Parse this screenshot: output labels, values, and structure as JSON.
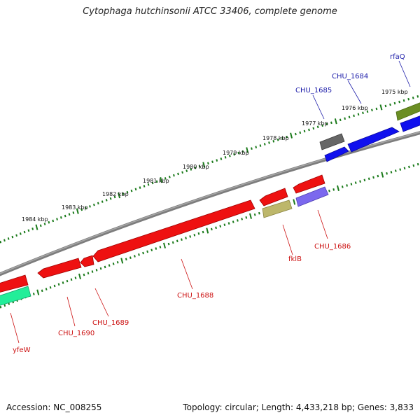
{
  "title": "Cytophaga hutchinsonii ATCC 33406, complete genome",
  "footer": {
    "accession": "Accession: NC_008255",
    "summary": "Topology: circular; Length: 4,433,218 bp; Genes: 3,833"
  },
  "colors": {
    "backbone": "#8a8a8a",
    "tick": "#1a7a1a",
    "label_forward": "#1a1aa8",
    "label_reverse": "#cc1111"
  },
  "kbp_ticks": [
    "1984 kbp",
    "1983 kbp",
    "1982 kbp",
    "1981 kbp",
    "1980 kbp",
    "1979 kbp",
    "1978 kbp",
    "1977 kbp",
    "1976 kbp",
    "1975 kbp"
  ],
  "genes": [
    {
      "name": "rfaQ",
      "strand": "forward",
      "color": "#6b8e23"
    },
    {
      "name": "CHU_1684",
      "strand": "forward",
      "color": "#1010ee"
    },
    {
      "name": "CHU_1685",
      "strand": "forward",
      "color": "#666666"
    },
    {
      "name": "CHU_1686",
      "strand": "reverse",
      "color": "#7b68ee"
    },
    {
      "name": "fklB",
      "strand": "reverse",
      "color": "#bdb76b"
    },
    {
      "name": "CHU_1688",
      "strand": "reverse",
      "color": "#ee1111"
    },
    {
      "name": "CHU_1689",
      "strand": "reverse",
      "color": "#ee1111"
    },
    {
      "name": "CHU_1690",
      "strand": "reverse",
      "color": "#ee1111"
    },
    {
      "name": "yfeW",
      "strand": "reverse",
      "color": "#22ee99"
    }
  ]
}
